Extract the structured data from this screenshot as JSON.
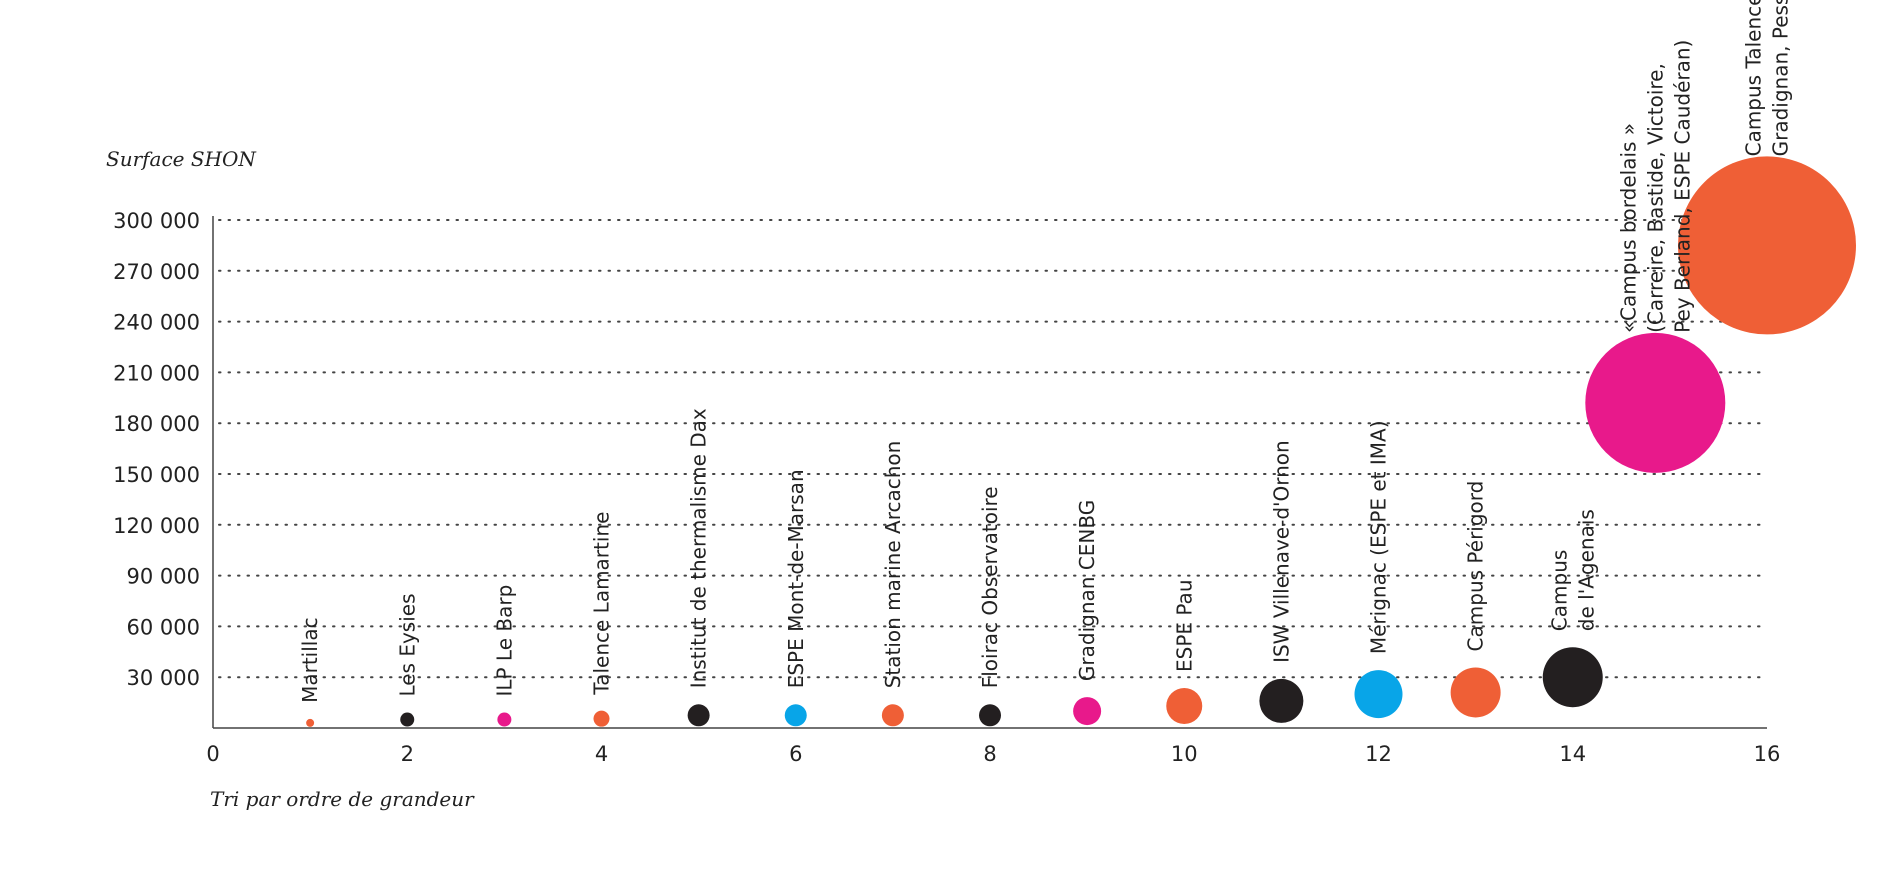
{
  "chart_data": {
    "type": "scatter",
    "ylabel": "Surface SHON",
    "xlabel": "Tri par ordre de grandeur",
    "xlim": [
      0,
      16
    ],
    "ylim": [
      0,
      300000
    ],
    "x_ticks": [
      0,
      2,
      4,
      6,
      8,
      10,
      12,
      14,
      16
    ],
    "x_tick_labels": [
      "0",
      "2",
      "4",
      "6",
      "8",
      "10",
      "12",
      "14",
      "16"
    ],
    "y_ticks": [
      30000,
      60000,
      90000,
      120000,
      150000,
      180000,
      210000,
      240000,
      270000,
      300000
    ],
    "y_tick_labels": [
      "30 000",
      "60 000",
      "90 000",
      "120 000",
      "150 000",
      "180 000",
      "210 000",
      "240 000",
      "270 000",
      "300 000"
    ],
    "grid": "horizontal dotted",
    "colors": {
      "orange": "#ef5f36",
      "black": "#231f20",
      "magenta": "#e8198b",
      "blue": "#08a5e8"
    },
    "points": [
      {
        "x": 1,
        "y": 3000,
        "size": 4,
        "color": "#ef5f36",
        "label_lines": [
          "Martillac"
        ]
      },
      {
        "x": 2,
        "y": 5000,
        "size": 7,
        "color": "#231f20",
        "label_lines": [
          "Les Eysies"
        ]
      },
      {
        "x": 3,
        "y": 5000,
        "size": 7,
        "color": "#e8198b",
        "label_lines": [
          "ILP Le Barp"
        ]
      },
      {
        "x": 4,
        "y": 5500,
        "size": 8,
        "color": "#ef5f36",
        "label_lines": [
          "Talence Lamartine"
        ]
      },
      {
        "x": 5,
        "y": 7500,
        "size": 11,
        "color": "#231f20",
        "label_lines": [
          "Institut de thermalisme Dax"
        ]
      },
      {
        "x": 6,
        "y": 7500,
        "size": 11,
        "color": "#08a5e8",
        "label_lines": [
          "ESPE Mont-de-Marsan"
        ]
      },
      {
        "x": 7,
        "y": 7500,
        "size": 11,
        "color": "#ef5f36",
        "label_lines": [
          "Station marine Arcachon"
        ]
      },
      {
        "x": 8,
        "y": 7500,
        "size": 11,
        "color": "#231f20",
        "label_lines": [
          "Floirac Observatoire"
        ]
      },
      {
        "x": 9,
        "y": 10000,
        "size": 14,
        "color": "#e8198b",
        "label_lines": [
          "Gradignan CENBG"
        ]
      },
      {
        "x": 10,
        "y": 13000,
        "size": 18,
        "color": "#ef5f36",
        "label_lines": [
          "ESPE Pau"
        ]
      },
      {
        "x": 11,
        "y": 16000,
        "size": 22,
        "color": "#231f20",
        "label_lines": [
          "ISW Villenave-d'Ornon"
        ]
      },
      {
        "x": 12,
        "y": 20000,
        "size": 24,
        "color": "#08a5e8",
        "label_lines": [
          "Mérignac (ESPE et IMA)"
        ]
      },
      {
        "x": 13,
        "y": 21000,
        "size": 25,
        "color": "#ef5f36",
        "label_lines": [
          "Campus Périgord"
        ]
      },
      {
        "x": 14,
        "y": 30000,
        "size": 30,
        "color": "#231f20",
        "label_lines": [
          "Campus",
          "de l'Agenais"
        ]
      },
      {
        "x": 14.85,
        "y": 192000,
        "size": 70,
        "color": "#e8198b",
        "label_lines": [
          "«Campus bordelais »",
          "(Carreire, Bastide, Victoire,",
          "Pey Berland, ESPE Caudéran)"
        ]
      },
      {
        "x": 16,
        "y": 285000,
        "size": 89,
        "color": "#ef5f36",
        "label_lines": [
          "Campus Talence,",
          "Gradignan, Pessac"
        ]
      }
    ]
  }
}
